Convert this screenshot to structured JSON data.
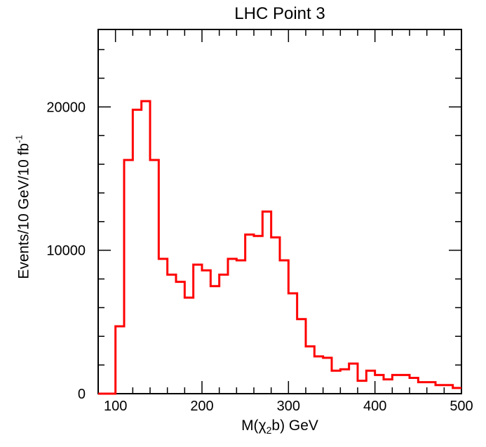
{
  "chart_data": {
    "type": "histogram",
    "title": "LHC Point 3",
    "xlabel": {
      "prefix": "M(",
      "symbol": "χ",
      "subscript": "2",
      "suffix": "b)  GeV"
    },
    "ylabel": {
      "text": "Events/10 GeV/10 fb",
      "superscript": "-1"
    },
    "xlim": [
      80,
      500
    ],
    "ylim": [
      0,
      25400
    ],
    "xticks": [
      100,
      200,
      300,
      400,
      500
    ],
    "yticks": [
      0,
      10000,
      20000
    ],
    "bin_width": 10,
    "bin_edges_start": 80,
    "values": [
      0,
      0,
      4700,
      16300,
      19800,
      20400,
      16300,
      9400,
      8300,
      7800,
      6700,
      9000,
      8600,
      7500,
      8300,
      9400,
      9300,
      11100,
      11000,
      12700,
      10900,
      9300,
      7000,
      5200,
      3300,
      2600,
      2500,
      1600,
      1700,
      2100,
      900,
      1600,
      1300,
      1000,
      1300,
      1300,
      1100,
      800,
      800,
      600,
      600,
      400
    ],
    "line_color": "#ff0000",
    "grid": false,
    "legend": "none"
  }
}
